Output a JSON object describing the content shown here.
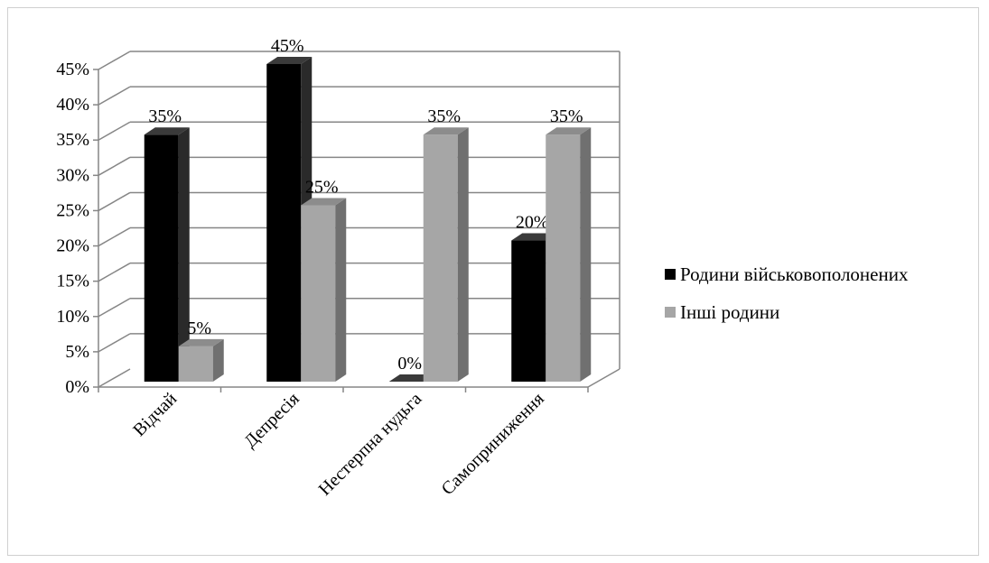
{
  "chart_data": {
    "type": "bar",
    "categories": [
      "Відчай",
      "Депресія",
      "Нестерпна нудьга",
      "Самоприниження"
    ],
    "series": [
      {
        "name": "Родини військовополонених",
        "values": [
          35,
          45,
          0,
          20
        ],
        "color": "#000000",
        "side_color": "#2a2a2a",
        "top_color": "#3a3a3a"
      },
      {
        "name": "Інші родини",
        "values": [
          5,
          25,
          35,
          35
        ],
        "color": "#a6a6a6",
        "side_color": "#707070",
        "top_color": "#8c8c8c"
      }
    ],
    "data_labels": [
      [
        "35%",
        "45%",
        "0%",
        "20%"
      ],
      [
        "5%",
        "25%",
        "35%",
        "35%"
      ]
    ],
    "y_tick_labels": [
      "0%",
      "5%",
      "10%",
      "15%",
      "20%",
      "25%",
      "30%",
      "35%",
      "40%",
      "45%"
    ],
    "ylim": [
      0,
      45
    ],
    "grid": true,
    "legend_position": "right",
    "three_d": true
  }
}
